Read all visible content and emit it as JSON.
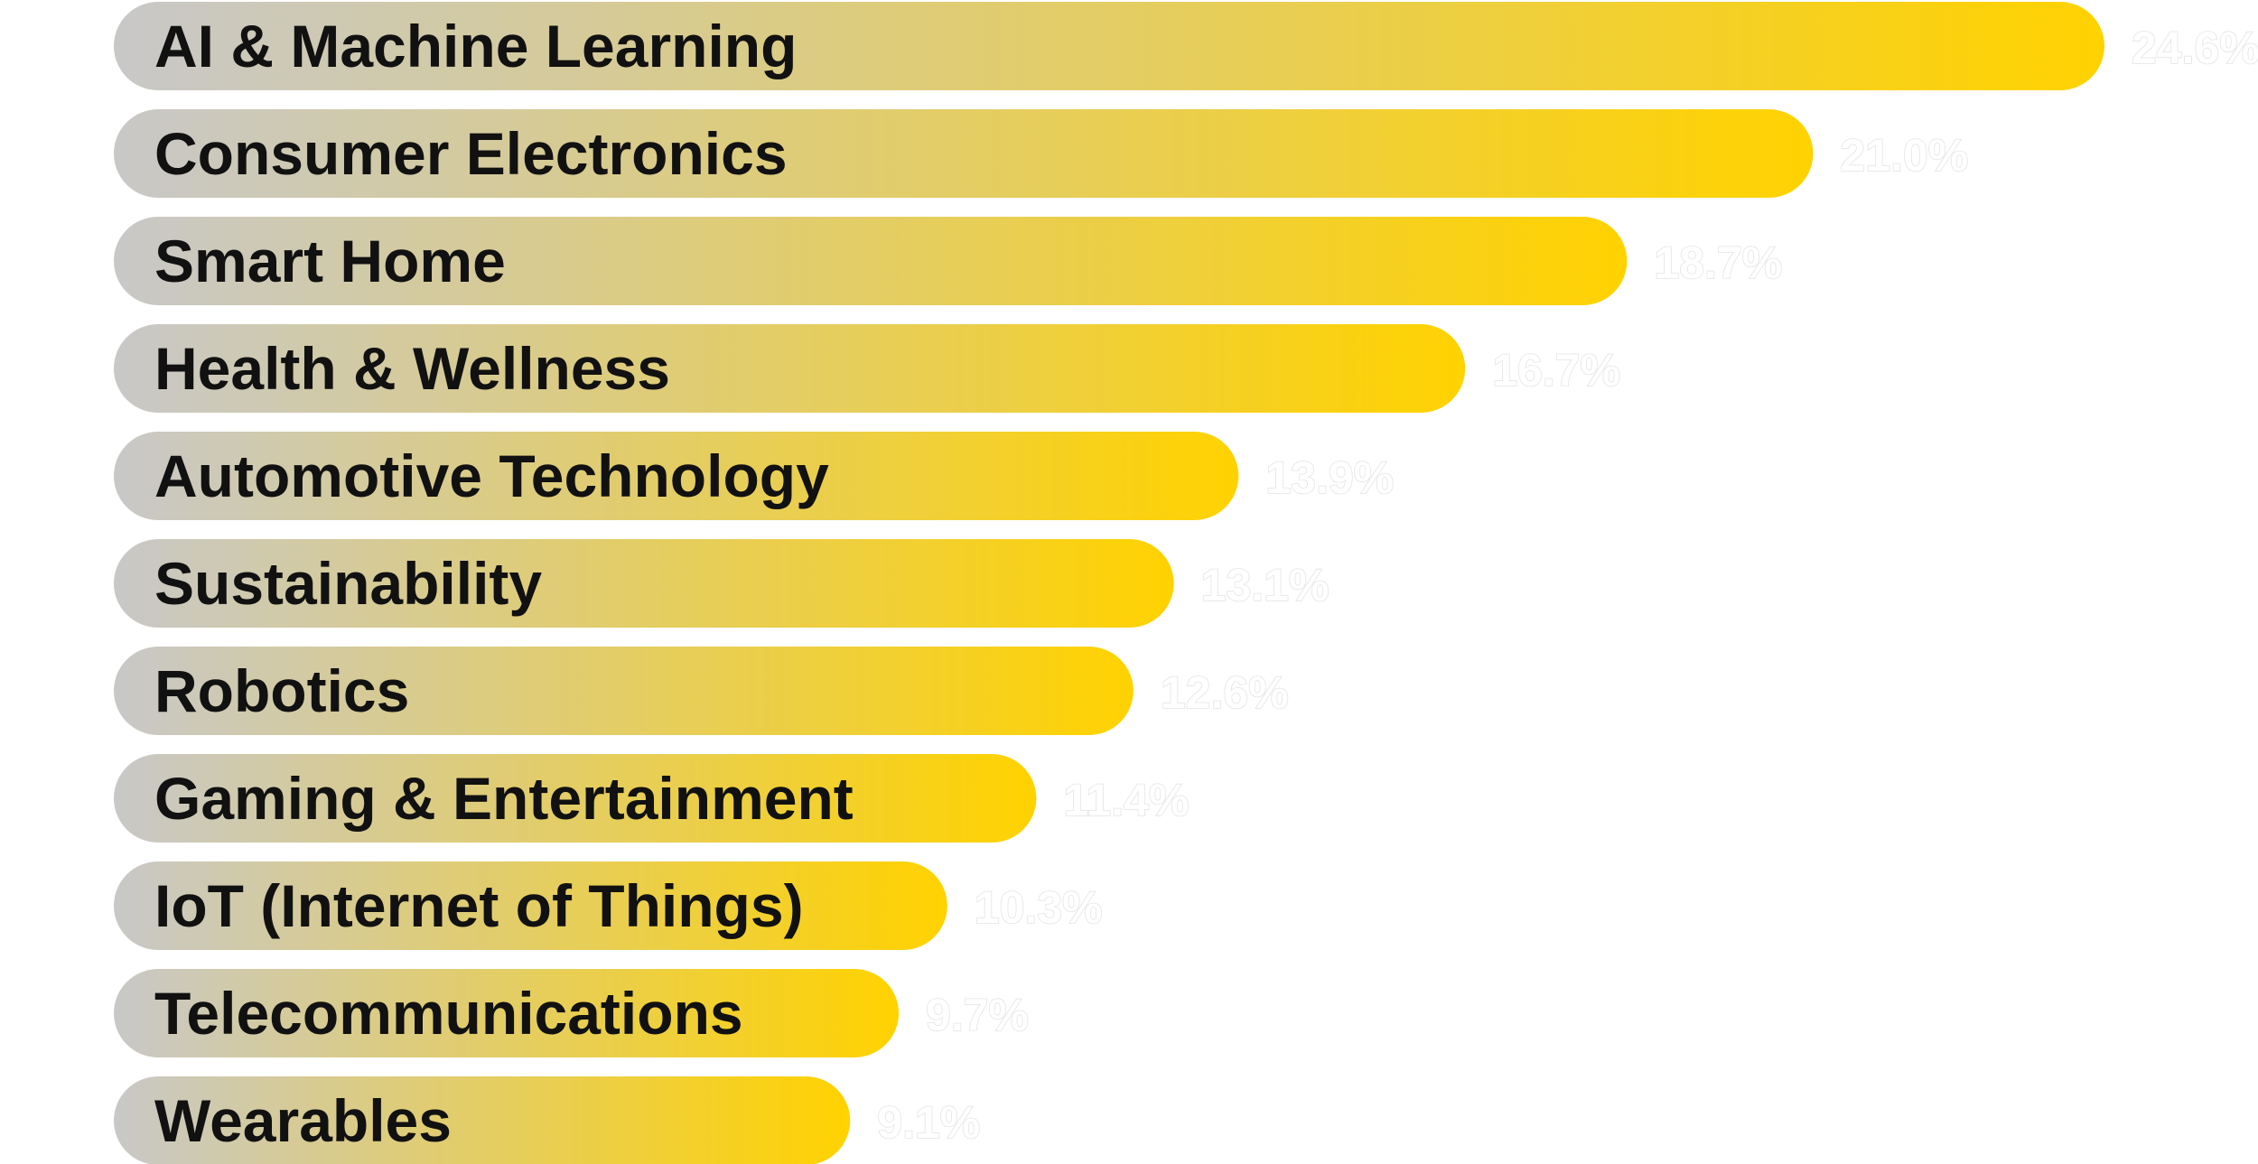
{
  "chart_data": {
    "type": "bar",
    "orientation": "horizontal",
    "title": "",
    "xlabel": "",
    "ylabel": "",
    "categories": [
      "AI & Machine Learning",
      "Consumer Electronics",
      "Smart Home",
      "Health & Wellness",
      "Automotive Technology",
      "Sustainability",
      "Robotics",
      "Gaming & Entertainment",
      "IoT (Internet of Things)",
      "Telecommunications",
      "Wearables"
    ],
    "values": [
      24.6,
      21.0,
      18.7,
      16.7,
      13.9,
      13.1,
      12.6,
      11.4,
      10.3,
      9.7,
      9.1
    ],
    "value_labels": [
      "24.6%",
      "21.0%",
      "18.7%",
      "16.7%",
      "13.9%",
      "13.1%",
      "12.6%",
      "11.4%",
      "10.3%",
      "9.7%",
      "9.1%"
    ],
    "unit": "%",
    "xlim": [
      0,
      24.6
    ],
    "grid": false,
    "legend": "none",
    "colors": {
      "bar_gradient_start": "#c8c8c8",
      "bar_gradient_end": "#ffd200",
      "label_text": "#111111",
      "value_text": "#ffffff",
      "value_outline": "#e4e4e4"
    }
  }
}
